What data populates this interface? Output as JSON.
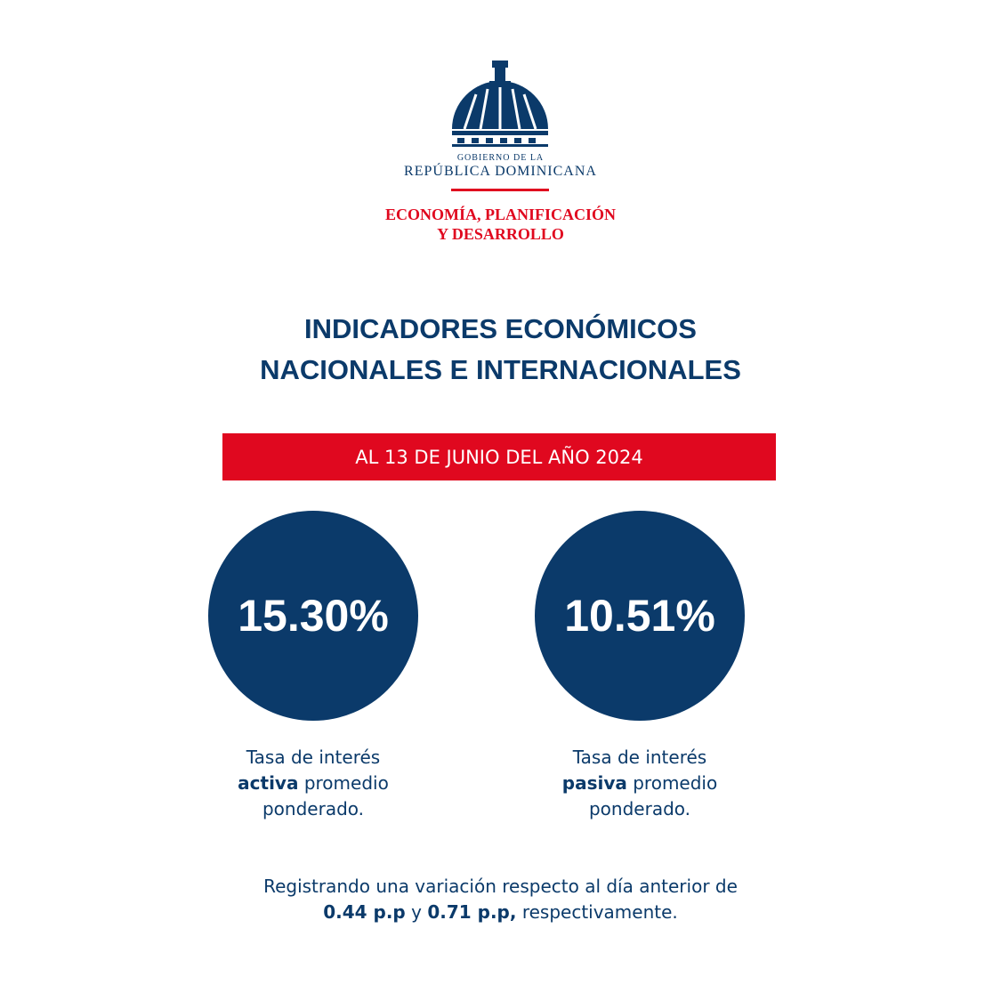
{
  "logo": {
    "line1": "GOBIERNO DE LA",
    "line2": "REPÚBLICA DOMINICANA",
    "ministry1": "ECONOMÍA, PLANIFICACIÓN",
    "ministry2": "Y DESARROLLO"
  },
  "title": {
    "line1": "INDICADORES ECONÓMICOS",
    "line2": "NACIONALES E INTERNACIONALES"
  },
  "date": "AL 13 DE JUNIO DEL AÑO 2024",
  "indicators": [
    {
      "value": "15.30%",
      "line1": "Tasa de interés",
      "bold": "activa",
      "rest": "promedio",
      "line3": "ponderado."
    },
    {
      "value": "10.51%",
      "line1": "Tasa de interés",
      "bold": "pasiva",
      "rest": "promedio",
      "line3": "ponderado."
    }
  ],
  "footer": {
    "line1": "Registrando una variación respecto al día anterior de",
    "v1": "0.44 p.p",
    "mid": "y",
    "v2": "0.71 p.p,",
    "end": "respectivamente."
  }
}
